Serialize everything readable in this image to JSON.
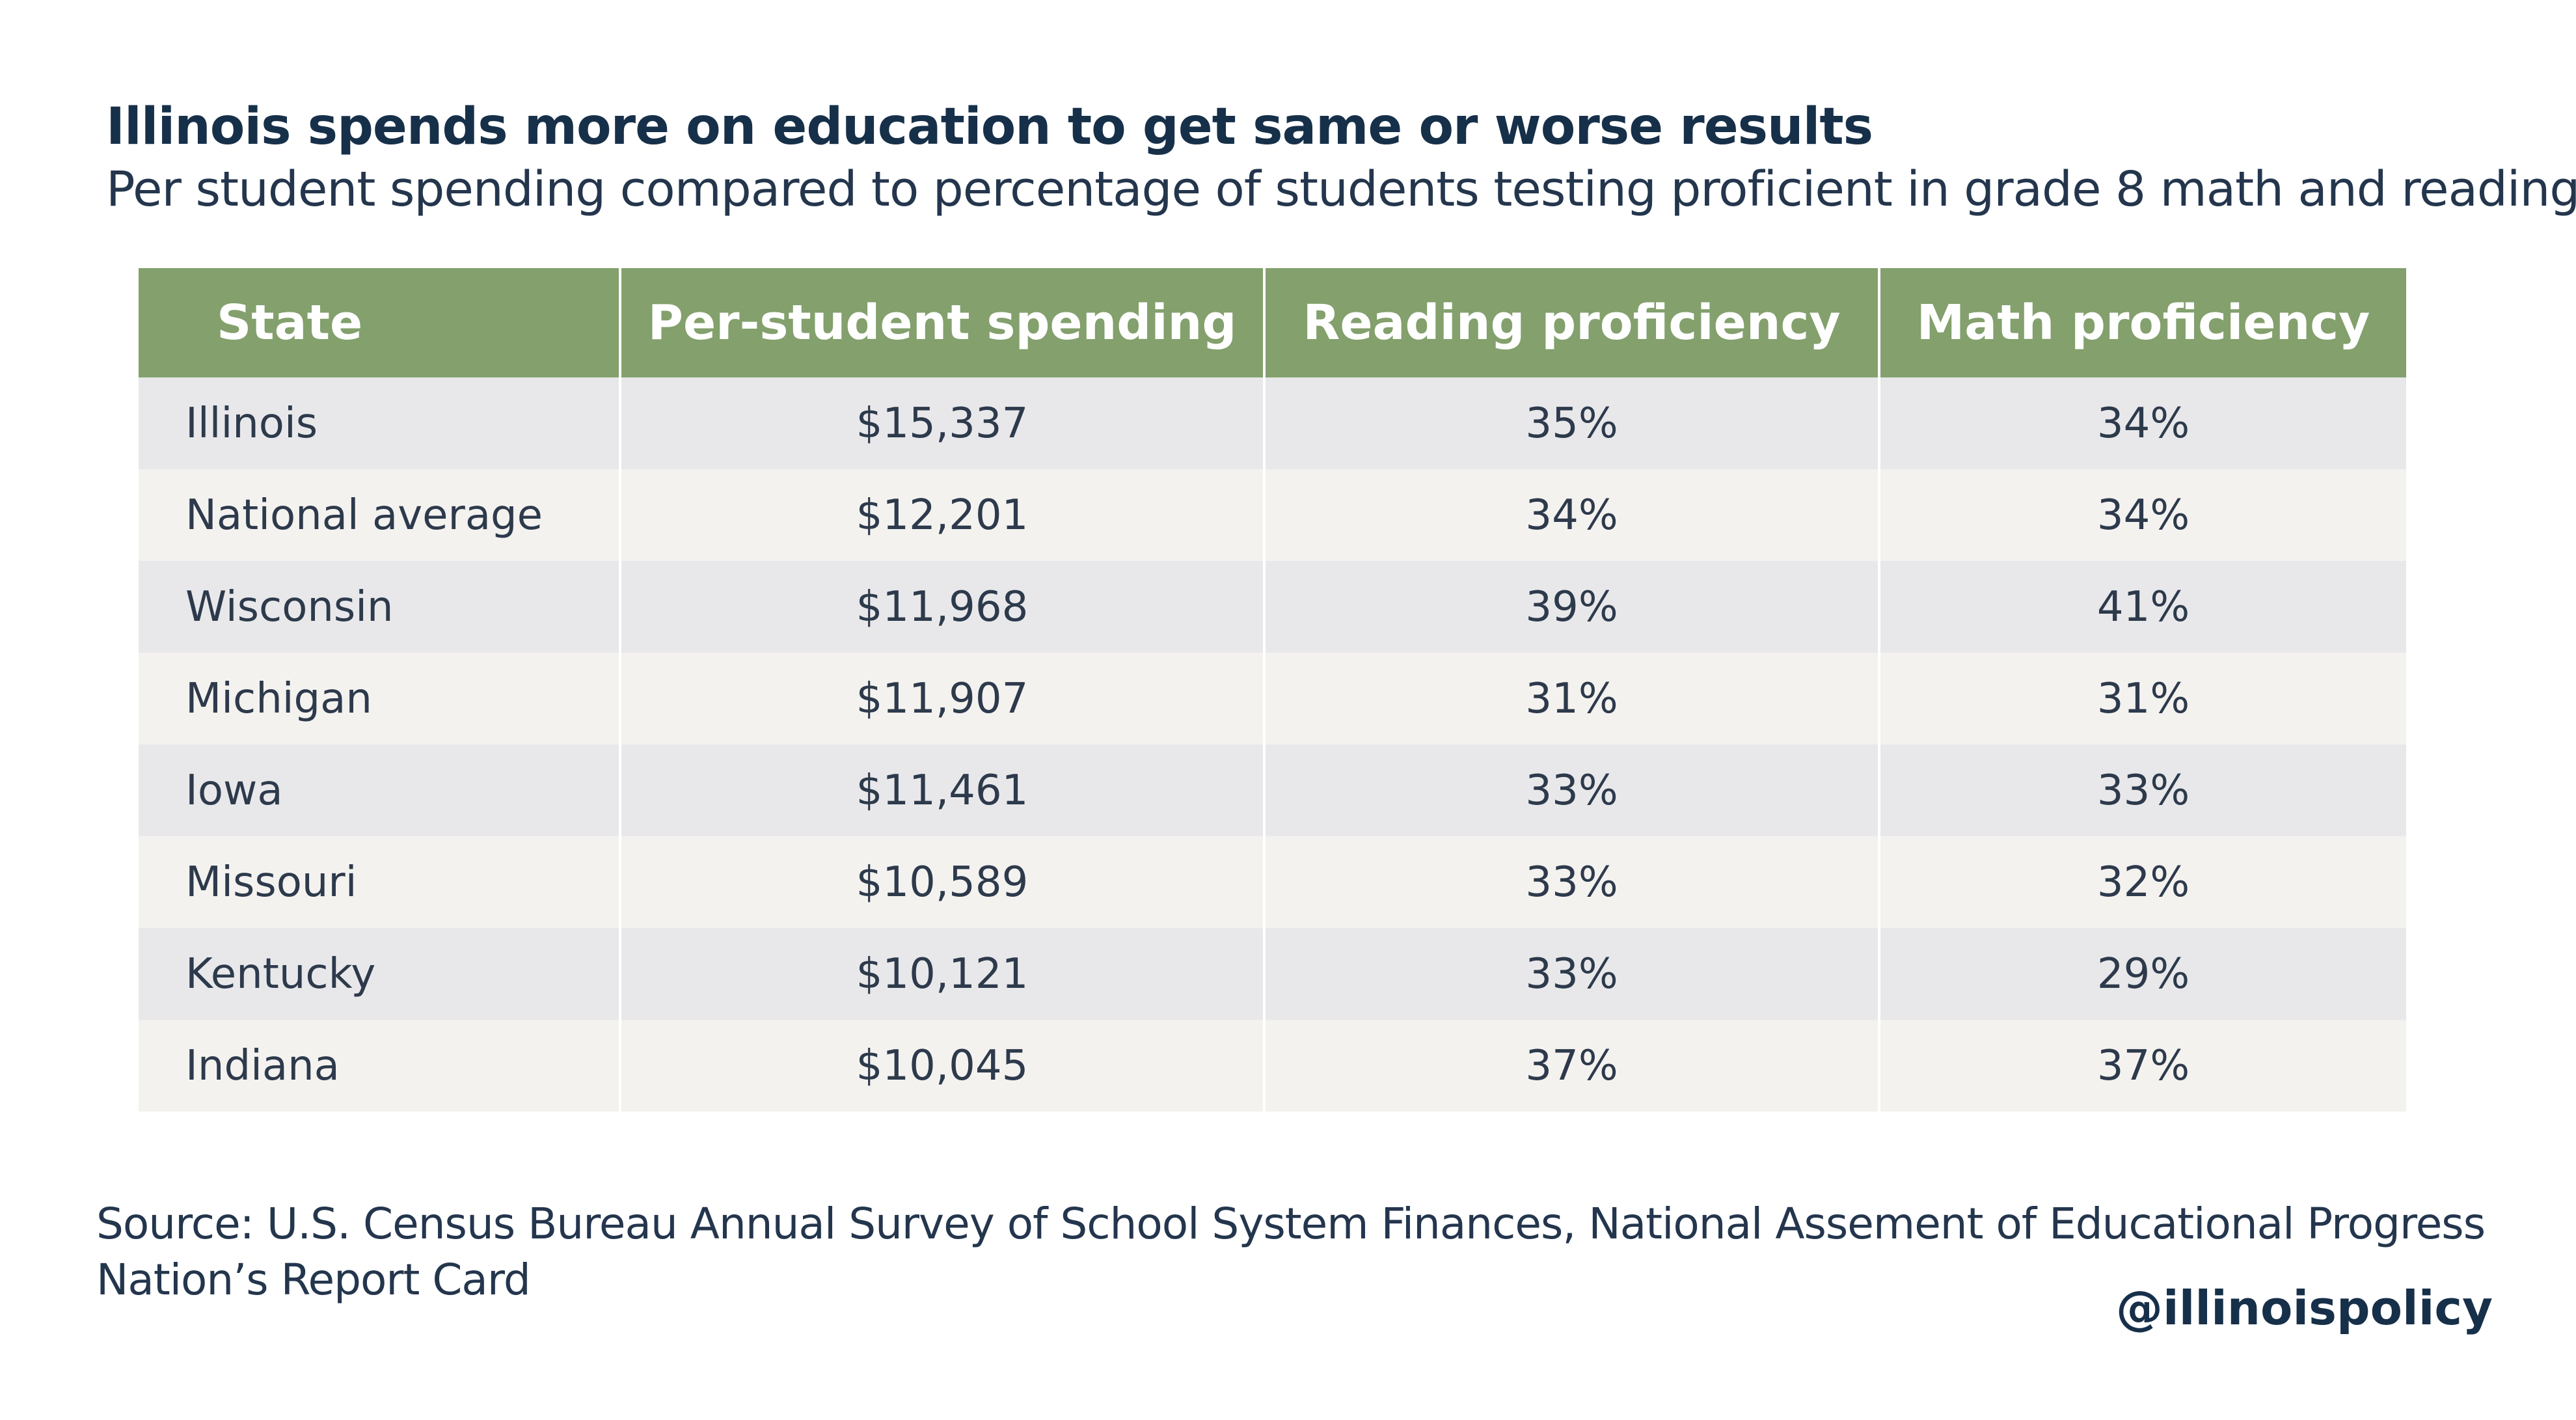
{
  "chart_data": {
    "type": "table",
    "title": "Illinois spends more on education to get same or worse results",
    "subtitle": "Per student spending compared to percentage of students testing proficient in grade 8 math and reading",
    "columns": [
      "State",
      "Per-student spending",
      "Reading proficiency",
      "Math proficiency"
    ],
    "rows": [
      {
        "state": "Illinois",
        "spending": "$15,337",
        "reading": "35%",
        "math": "34%"
      },
      {
        "state": "National average",
        "spending": "$12,201",
        "reading": "34%",
        "math": "34%"
      },
      {
        "state": "Wisconsin",
        "spending": "$11,968",
        "reading": "39%",
        "math": "41%"
      },
      {
        "state": "Michigan",
        "spending": "$11,907",
        "reading": "31%",
        "math": "31%"
      },
      {
        "state": "Iowa",
        "spending": "$11,461",
        "reading": "33%",
        "math": "33%"
      },
      {
        "state": "Missouri",
        "spending": "$10,589",
        "reading": "33%",
        "math": "32%"
      },
      {
        "state": "Kentucky",
        "spending": "$10,121",
        "reading": "33%",
        "math": "29%"
      },
      {
        "state": "Indiana",
        "spending": "$10,045",
        "reading": "37%",
        "math": "37%"
      }
    ],
    "source": "Source: U.S. Census Bureau Annual Survey of School System Finances, National Assement of Educational Progress Nation’s Report Card",
    "handle": "@illinoispolicy"
  },
  "colors": {
    "header_bg": "#83a06d",
    "row_odd": "#e8e8ea",
    "row_even": "#f4f2ef",
    "title_text": "#17304a"
  }
}
